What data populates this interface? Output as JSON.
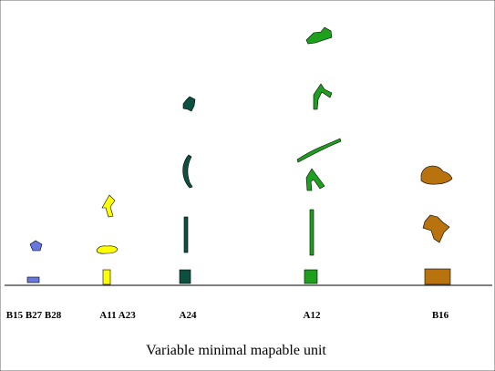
{
  "labels": [
    "B15 B27 B28",
    "A11 A23",
    "A24",
    "A12",
    "B16"
  ],
  "caption": "Variable minimal mapable unit"
}
